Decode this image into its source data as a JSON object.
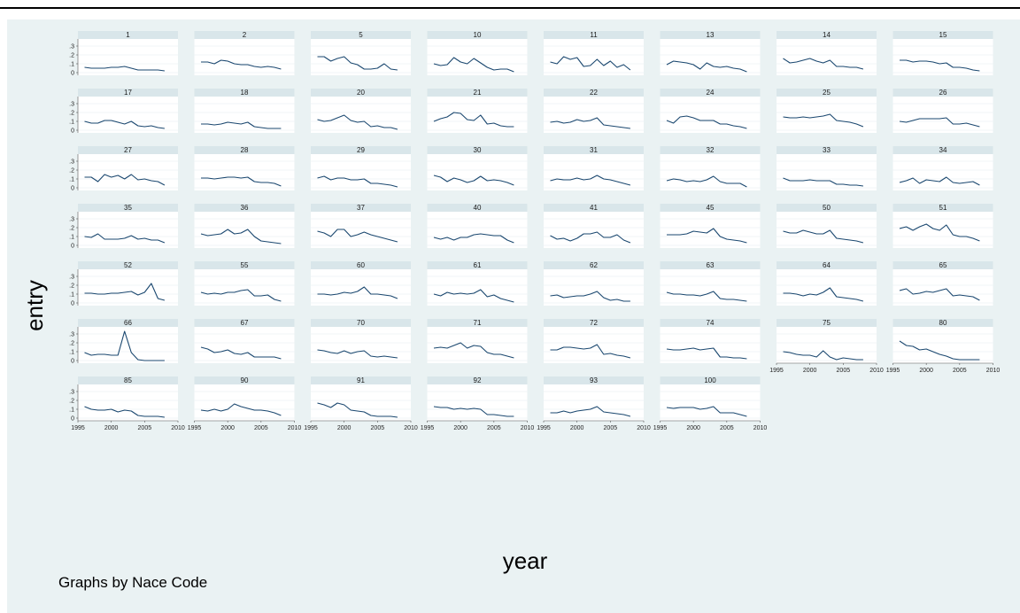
{
  "figure": {
    "y_axis_label": "entry",
    "x_axis_label": "year",
    "note": "Graphs by Nace Code"
  },
  "colors": {
    "background": "#eaf2f3",
    "panel": "#ffffff",
    "strip": "#d9e6ea",
    "line": "#1a476f",
    "axis": "#555555"
  },
  "chart_data": {
    "type": "line",
    "layout": "small-multiples",
    "xlabel": "year",
    "ylabel": "entry",
    "xlim": [
      1995,
      2010
    ],
    "ylim": [
      0,
      0.35
    ],
    "xticks": [
      "1995",
      "2000",
      "2005",
      "2010"
    ],
    "yticks": [
      "0",
      ".1",
      ".2",
      ".3"
    ],
    "x": [
      1996,
      1997,
      1998,
      1999,
      2000,
      2001,
      2002,
      2003,
      2004,
      2005,
      2006,
      2007,
      2008
    ],
    "grid": true,
    "panels": [
      {
        "name": "1",
        "values": [
          0.06,
          0.05,
          0.05,
          0.05,
          0.06,
          0.06,
          0.07,
          0.05,
          0.03,
          0.03,
          0.03,
          0.03,
          0.02
        ]
      },
      {
        "name": "2",
        "values": [
          0.12,
          0.12,
          0.1,
          0.14,
          0.13,
          0.1,
          0.09,
          0.09,
          0.07,
          0.06,
          0.07,
          0.06,
          0.04
        ]
      },
      {
        "name": "5",
        "values": [
          0.18,
          0.18,
          0.13,
          0.16,
          0.18,
          0.11,
          0.09,
          0.04,
          0.04,
          0.05,
          0.1,
          0.04,
          0.03
        ]
      },
      {
        "name": "10",
        "values": [
          0.1,
          0.08,
          0.09,
          0.17,
          0.12,
          0.1,
          0.16,
          0.11,
          0.06,
          0.03,
          0.04,
          0.04,
          0.01
        ]
      },
      {
        "name": "11",
        "values": [
          0.12,
          0.1,
          0.18,
          0.15,
          0.17,
          0.07,
          0.08,
          0.15,
          0.08,
          0.13,
          0.06,
          0.09,
          0.03
        ]
      },
      {
        "name": "13",
        "values": [
          0.09,
          0.13,
          0.12,
          0.11,
          0.09,
          0.04,
          0.11,
          0.07,
          0.06,
          0.07,
          0.05,
          0.04,
          0.01
        ]
      },
      {
        "name": "14",
        "values": [
          0.16,
          0.11,
          0.12,
          0.14,
          0.16,
          0.13,
          0.11,
          0.14,
          0.07,
          0.07,
          0.06,
          0.06,
          0.04
        ]
      },
      {
        "name": "15",
        "values": [
          0.14,
          0.14,
          0.12,
          0.13,
          0.13,
          0.12,
          0.1,
          0.11,
          0.06,
          0.06,
          0.05,
          0.03,
          0.02
        ]
      },
      {
        "name": "17",
        "values": [
          0.1,
          0.08,
          0.08,
          0.11,
          0.11,
          0.09,
          0.07,
          0.1,
          0.05,
          0.04,
          0.05,
          0.03,
          0.02
        ]
      },
      {
        "name": "18",
        "values": [
          0.07,
          0.07,
          0.06,
          0.07,
          0.09,
          0.08,
          0.07,
          0.09,
          0.04,
          0.03,
          0.02,
          0.02,
          0.02
        ]
      },
      {
        "name": "20",
        "values": [
          0.12,
          0.1,
          0.11,
          0.14,
          0.17,
          0.11,
          0.09,
          0.1,
          0.04,
          0.05,
          0.03,
          0.03,
          0.01
        ]
      },
      {
        "name": "21",
        "values": [
          0.1,
          0.13,
          0.15,
          0.2,
          0.19,
          0.12,
          0.11,
          0.17,
          0.07,
          0.08,
          0.05,
          0.04,
          0.04
        ]
      },
      {
        "name": "22",
        "values": [
          0.09,
          0.1,
          0.08,
          0.09,
          0.12,
          0.1,
          0.11,
          0.14,
          0.06,
          0.05,
          0.04,
          0.03,
          0.02
        ]
      },
      {
        "name": "24",
        "values": [
          0.11,
          0.08,
          0.15,
          0.16,
          0.14,
          0.11,
          0.11,
          0.11,
          0.07,
          0.07,
          0.05,
          0.04,
          0.02
        ]
      },
      {
        "name": "25",
        "values": [
          0.15,
          0.14,
          0.14,
          0.15,
          0.14,
          0.15,
          0.16,
          0.18,
          0.11,
          0.1,
          0.09,
          0.07,
          0.04
        ]
      },
      {
        "name": "26",
        "values": [
          0.1,
          0.09,
          0.11,
          0.13,
          0.13,
          0.13,
          0.13,
          0.14,
          0.07,
          0.07,
          0.08,
          0.06,
          0.04
        ]
      },
      {
        "name": "27",
        "values": [
          0.12,
          0.12,
          0.07,
          0.15,
          0.12,
          0.14,
          0.1,
          0.15,
          0.09,
          0.1,
          0.08,
          0.07,
          0.03
        ]
      },
      {
        "name": "28",
        "values": [
          0.11,
          0.11,
          0.1,
          0.11,
          0.12,
          0.12,
          0.11,
          0.12,
          0.07,
          0.06,
          0.06,
          0.05,
          0.02
        ]
      },
      {
        "name": "29",
        "values": [
          0.11,
          0.13,
          0.09,
          0.11,
          0.11,
          0.09,
          0.09,
          0.1,
          0.05,
          0.05,
          0.04,
          0.03,
          0.01
        ]
      },
      {
        "name": "30",
        "values": [
          0.14,
          0.12,
          0.07,
          0.11,
          0.09,
          0.06,
          0.08,
          0.13,
          0.08,
          0.09,
          0.08,
          0.06,
          0.03
        ]
      },
      {
        "name": "31",
        "values": [
          0.08,
          0.1,
          0.09,
          0.09,
          0.11,
          0.09,
          0.1,
          0.14,
          0.1,
          0.09,
          0.07,
          0.05,
          0.03
        ]
      },
      {
        "name": "32",
        "values": [
          0.08,
          0.1,
          0.09,
          0.07,
          0.08,
          0.07,
          0.09,
          0.13,
          0.07,
          0.05,
          0.05,
          0.05,
          0.01
        ]
      },
      {
        "name": "33",
        "values": [
          0.11,
          0.08,
          0.08,
          0.08,
          0.09,
          0.08,
          0.08,
          0.08,
          0.04,
          0.04,
          0.03,
          0.03,
          0.02
        ]
      },
      {
        "name": "34",
        "values": [
          0.06,
          0.08,
          0.11,
          0.05,
          0.09,
          0.08,
          0.07,
          0.12,
          0.06,
          0.05,
          0.06,
          0.07,
          0.03
        ]
      },
      {
        "name": "35",
        "values": [
          0.1,
          0.09,
          0.13,
          0.07,
          0.07,
          0.07,
          0.08,
          0.11,
          0.07,
          0.08,
          0.06,
          0.06,
          0.03
        ]
      },
      {
        "name": "36",
        "values": [
          0.13,
          0.11,
          0.12,
          0.13,
          0.18,
          0.13,
          0.14,
          0.18,
          0.1,
          0.05,
          0.04,
          0.03,
          0.02
        ]
      },
      {
        "name": "37",
        "values": [
          0.16,
          0.14,
          0.1,
          0.18,
          0.18,
          0.1,
          0.12,
          0.15,
          0.12,
          0.1,
          0.08,
          0.06,
          0.04
        ]
      },
      {
        "name": "40",
        "values": [
          0.09,
          0.07,
          0.09,
          0.06,
          0.09,
          0.09,
          0.12,
          0.13,
          0.12,
          0.11,
          0.11,
          0.06,
          0.03
        ]
      },
      {
        "name": "41",
        "values": [
          0.11,
          0.07,
          0.08,
          0.05,
          0.08,
          0.13,
          0.13,
          0.15,
          0.09,
          0.09,
          0.12,
          0.06,
          0.03
        ]
      },
      {
        "name": "45",
        "values": [
          0.12,
          0.12,
          0.12,
          0.13,
          0.16,
          0.15,
          0.14,
          0.19,
          0.1,
          0.07,
          0.06,
          0.05,
          0.03
        ]
      },
      {
        "name": "50",
        "values": [
          0.16,
          0.14,
          0.14,
          0.17,
          0.15,
          0.13,
          0.13,
          0.17,
          0.08,
          0.07,
          0.06,
          0.05,
          0.03
        ]
      },
      {
        "name": "51",
        "values": [
          0.19,
          0.21,
          0.17,
          0.21,
          0.24,
          0.19,
          0.17,
          0.23,
          0.12,
          0.1,
          0.1,
          0.08,
          0.05
        ]
      },
      {
        "name": "52",
        "values": [
          0.11,
          0.11,
          0.1,
          0.1,
          0.11,
          0.11,
          0.12,
          0.13,
          0.09,
          0.12,
          0.22,
          0.05,
          0.03
        ]
      },
      {
        "name": "55",
        "values": [
          0.12,
          0.1,
          0.11,
          0.1,
          0.12,
          0.12,
          0.14,
          0.15,
          0.08,
          0.08,
          0.09,
          0.04,
          0.02
        ]
      },
      {
        "name": "60",
        "values": [
          0.1,
          0.1,
          0.09,
          0.1,
          0.12,
          0.11,
          0.13,
          0.18,
          0.1,
          0.1,
          0.09,
          0.08,
          0.05
        ]
      },
      {
        "name": "61",
        "values": [
          0.1,
          0.08,
          0.12,
          0.1,
          0.11,
          0.1,
          0.11,
          0.15,
          0.07,
          0.09,
          0.05,
          0.03,
          0.01
        ]
      },
      {
        "name": "62",
        "values": [
          0.08,
          0.09,
          0.06,
          0.07,
          0.08,
          0.08,
          0.1,
          0.13,
          0.06,
          0.03,
          0.04,
          0.02,
          0.02
        ]
      },
      {
        "name": "63",
        "values": [
          0.12,
          0.1,
          0.1,
          0.09,
          0.09,
          0.08,
          0.1,
          0.13,
          0.05,
          0.04,
          0.04,
          0.03,
          0.02
        ]
      },
      {
        "name": "64",
        "values": [
          0.11,
          0.11,
          0.1,
          0.08,
          0.1,
          0.09,
          0.12,
          0.17,
          0.07,
          0.06,
          0.05,
          0.04,
          0.02
        ]
      },
      {
        "name": "65",
        "values": [
          0.14,
          0.16,
          0.1,
          0.11,
          0.13,
          0.12,
          0.14,
          0.16,
          0.08,
          0.09,
          0.08,
          0.07,
          0.03
        ]
      },
      {
        "name": "66",
        "values": [
          0.09,
          0.06,
          0.07,
          0.07,
          0.06,
          0.06,
          0.33,
          0.09,
          0.01,
          0.0,
          0.0,
          0.0,
          0.0
        ]
      },
      {
        "name": "67",
        "values": [
          0.15,
          0.13,
          0.09,
          0.1,
          0.12,
          0.08,
          0.07,
          0.09,
          0.04,
          0.04,
          0.04,
          0.04,
          0.02
        ]
      },
      {
        "name": "70",
        "values": [
          0.12,
          0.11,
          0.09,
          0.08,
          0.11,
          0.08,
          0.1,
          0.11,
          0.05,
          0.04,
          0.05,
          0.04,
          0.03
        ]
      },
      {
        "name": "71",
        "values": [
          0.14,
          0.15,
          0.14,
          0.17,
          0.2,
          0.14,
          0.17,
          0.16,
          0.09,
          0.07,
          0.07,
          0.05,
          0.03
        ]
      },
      {
        "name": "72",
        "values": [
          0.12,
          0.12,
          0.15,
          0.15,
          0.14,
          0.13,
          0.14,
          0.18,
          0.07,
          0.08,
          0.06,
          0.05,
          0.03
        ]
      },
      {
        "name": "74",
        "values": [
          0.13,
          0.12,
          0.12,
          0.13,
          0.14,
          0.12,
          0.13,
          0.14,
          0.04,
          0.04,
          0.03,
          0.03,
          0.02
        ]
      },
      {
        "name": "75",
        "values": [
          0.1,
          0.09,
          0.07,
          0.06,
          0.06,
          0.04,
          0.11,
          0.04,
          0.01,
          0.03,
          0.02,
          0.01,
          0.01
        ]
      },
      {
        "name": "80",
        "values": [
          0.22,
          0.17,
          0.16,
          0.12,
          0.13,
          0.1,
          0.07,
          0.05,
          0.02,
          0.01,
          0.01,
          0.01,
          0.01
        ]
      },
      {
        "name": "85",
        "values": [
          0.13,
          0.1,
          0.09,
          0.09,
          0.1,
          0.07,
          0.09,
          0.08,
          0.03,
          0.02,
          0.02,
          0.02,
          0.01
        ]
      },
      {
        "name": "90",
        "values": [
          0.09,
          0.08,
          0.1,
          0.08,
          0.1,
          0.16,
          0.13,
          0.11,
          0.09,
          0.09,
          0.08,
          0.06,
          0.03
        ]
      },
      {
        "name": "91",
        "values": [
          0.17,
          0.15,
          0.12,
          0.17,
          0.15,
          0.09,
          0.08,
          0.07,
          0.03,
          0.02,
          0.02,
          0.02,
          0.01
        ]
      },
      {
        "name": "92",
        "values": [
          0.13,
          0.12,
          0.12,
          0.1,
          0.11,
          0.1,
          0.11,
          0.1,
          0.04,
          0.04,
          0.03,
          0.02,
          0.02
        ]
      },
      {
        "name": "93",
        "values": [
          0.06,
          0.06,
          0.08,
          0.06,
          0.08,
          0.09,
          0.1,
          0.13,
          0.07,
          0.06,
          0.05,
          0.04,
          0.02
        ]
      },
      {
        "name": "100",
        "values": [
          0.12,
          0.11,
          0.12,
          0.12,
          0.12,
          0.1,
          0.11,
          0.13,
          0.06,
          0.06,
          0.06,
          0.04,
          0.02
        ]
      }
    ]
  }
}
